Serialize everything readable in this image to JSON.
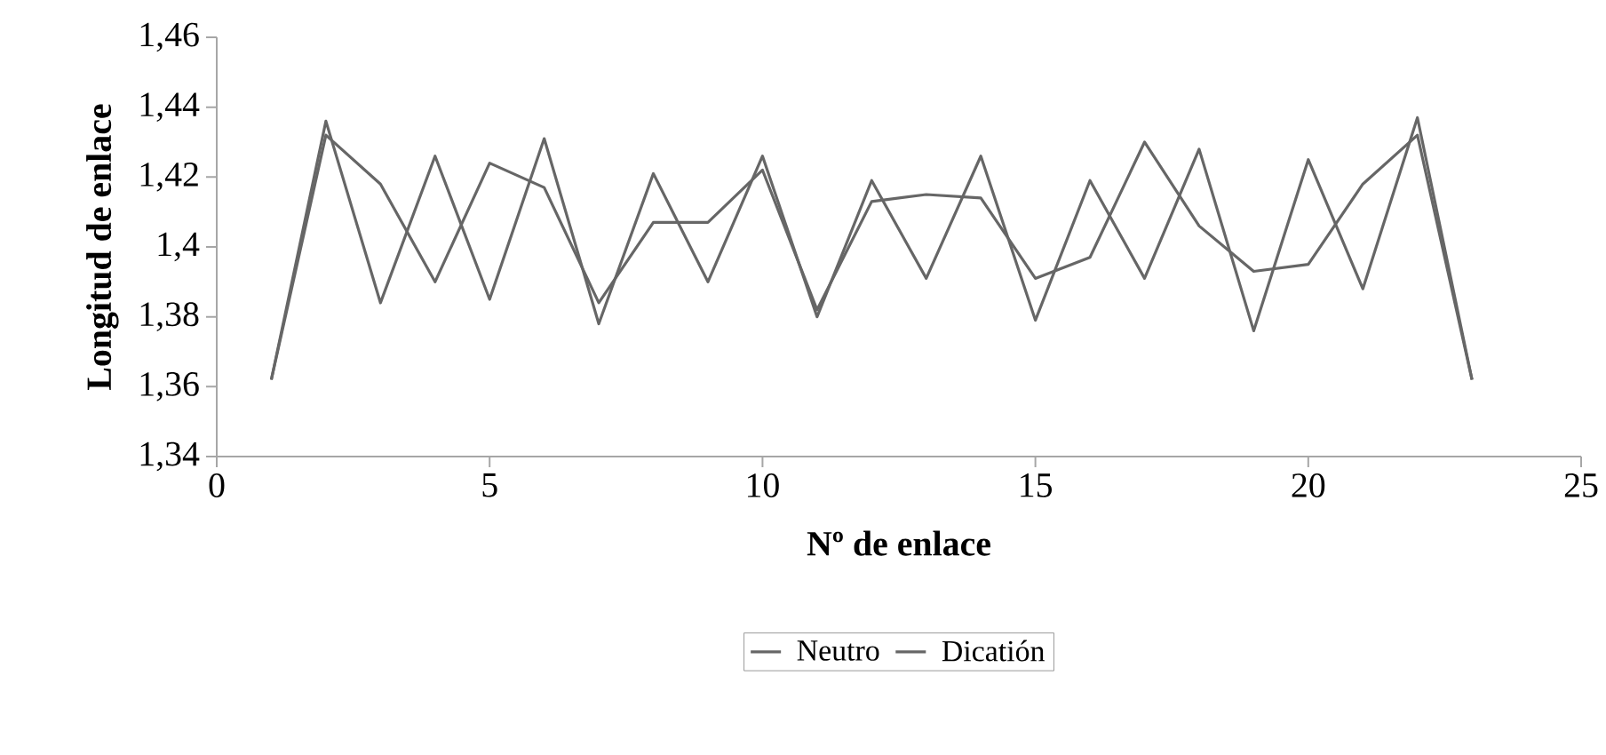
{
  "chart_data": {
    "type": "line",
    "xlabel": "Nº de enlace",
    "ylabel": "Longitud de enlace",
    "x": [
      1,
      2,
      3,
      4,
      5,
      6,
      7,
      8,
      9,
      10,
      11,
      12,
      13,
      14,
      15,
      16,
      17,
      18,
      19,
      20,
      21,
      22,
      23
    ],
    "series": [
      {
        "name": "Neutro",
        "color": "#666666",
        "values": [
          1.362,
          1.436,
          1.384,
          1.426,
          1.385,
          1.431,
          1.378,
          1.421,
          1.39,
          1.426,
          1.38,
          1.419,
          1.391,
          1.426,
          1.379,
          1.419,
          1.391,
          1.428,
          1.376,
          1.425,
          1.388,
          1.437,
          1.362
        ]
      },
      {
        "name": "Dicatión",
        "color": "#666666",
        "values": [
          1.362,
          1.432,
          1.418,
          1.39,
          1.424,
          1.417,
          1.384,
          1.407,
          1.407,
          1.422,
          1.382,
          1.413,
          1.415,
          1.414,
          1.391,
          1.397,
          1.43,
          1.406,
          1.393,
          1.395,
          1.418,
          1.432,
          1.362
        ]
      }
    ],
    "xlim": [
      0,
      25
    ],
    "xticks": [
      0,
      5,
      10,
      15,
      20,
      25
    ],
    "ylim": [
      1.34,
      1.46
    ],
    "yticks": [
      {
        "value": 1.34,
        "label": "1,34"
      },
      {
        "value": 1.36,
        "label": "1,36"
      },
      {
        "value": 1.38,
        "label": "1,38"
      },
      {
        "value": 1.4,
        "label": "1,4"
      },
      {
        "value": 1.42,
        "label": "1,42"
      },
      {
        "value": 1.44,
        "label": "1,44"
      },
      {
        "value": 1.46,
        "label": "1,46"
      }
    ],
    "legend": "bottom",
    "grid": false,
    "marker": "none",
    "line_style": "solid"
  }
}
